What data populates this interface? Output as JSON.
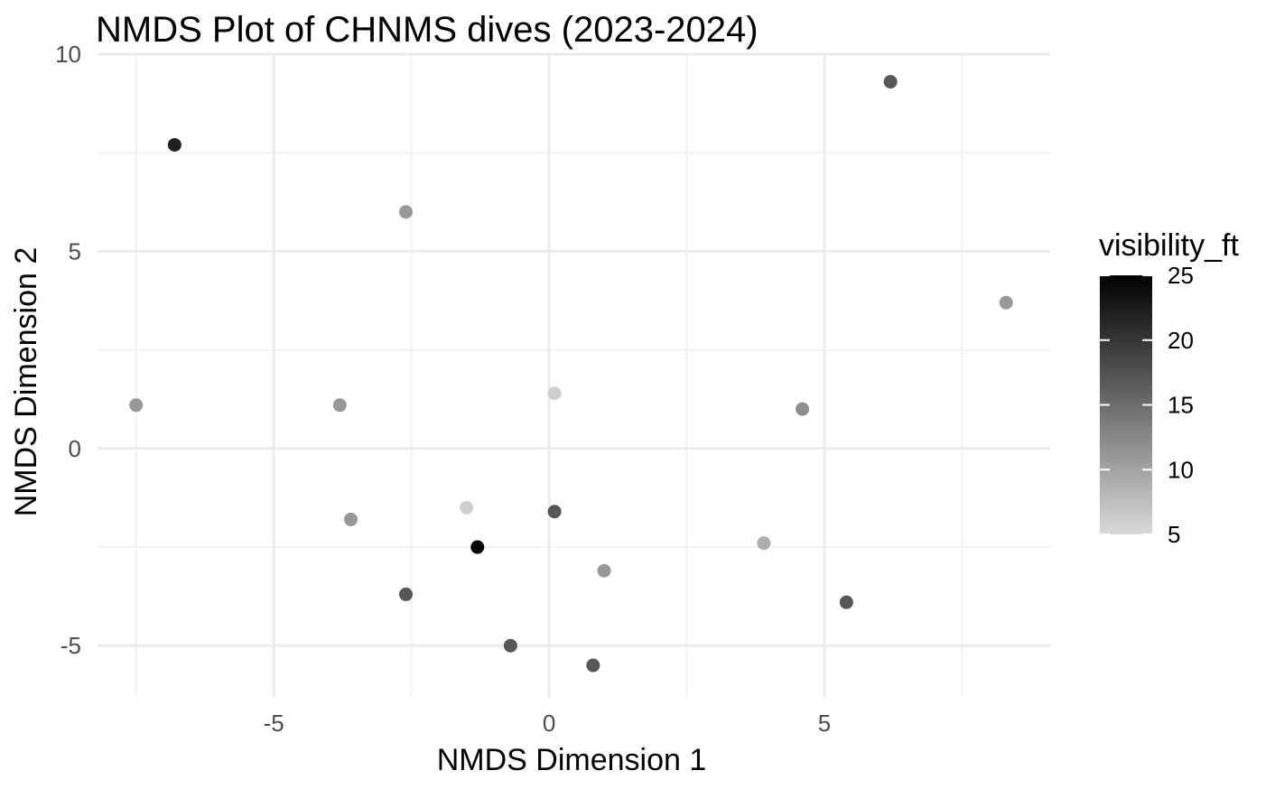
{
  "chart_data": {
    "type": "scatter",
    "title": "NMDS Plot of CHNMS dives (2023-2024)",
    "xlabel": "NMDS Dimension 1",
    "ylabel": "NMDS Dimension 2",
    "xlim": [
      -8.2,
      9.1
    ],
    "ylim": [
      -6.3,
      10.0
    ],
    "x_ticks": [
      -5,
      0,
      5
    ],
    "x_tick_labels": [
      "-5",
      "0",
      "5"
    ],
    "y_ticks": [
      -5,
      0,
      5,
      10
    ],
    "y_tick_labels": [
      "-5",
      "0",
      "5",
      "10"
    ],
    "x_minor_ticks": [
      -7.5,
      -2.5,
      2.5,
      7.5
    ],
    "y_minor_ticks": [
      -2.5,
      2.5,
      7.5
    ],
    "grid": true,
    "legend": {
      "title": "visibility_ft",
      "placement": "right",
      "type": "continuous-colorbar",
      "range": [
        5,
        25
      ],
      "ticks": [
        5,
        10,
        15,
        20,
        25
      ],
      "tick_labels": [
        "5",
        "10",
        "15",
        "20",
        "25"
      ],
      "low_color": "#d9d9d9",
      "high_color": "#000000"
    },
    "series": [
      {
        "points": [
          {
            "x": -7.5,
            "y": 1.1,
            "visibility_ft": 11
          },
          {
            "x": -6.8,
            "y": 7.7,
            "visibility_ft": 22
          },
          {
            "x": -3.8,
            "y": 1.1,
            "visibility_ft": 11
          },
          {
            "x": -3.6,
            "y": -1.8,
            "visibility_ft": 11
          },
          {
            "x": -2.6,
            "y": 6.0,
            "visibility_ft": 11
          },
          {
            "x": -2.6,
            "y": -3.7,
            "visibility_ft": 17
          },
          {
            "x": -1.5,
            "y": -1.5,
            "visibility_ft": 6
          },
          {
            "x": -1.3,
            "y": -2.5,
            "visibility_ft": 25
          },
          {
            "x": -0.7,
            "y": -5.0,
            "visibility_ft": 17
          },
          {
            "x": 0.1,
            "y": 1.4,
            "visibility_ft": 6
          },
          {
            "x": 0.1,
            "y": -1.6,
            "visibility_ft": 17
          },
          {
            "x": 0.8,
            "y": -5.5,
            "visibility_ft": 17
          },
          {
            "x": 1.0,
            "y": -3.1,
            "visibility_ft": 11
          },
          {
            "x": 3.9,
            "y": -2.4,
            "visibility_ft": 9
          },
          {
            "x": 4.6,
            "y": 1.0,
            "visibility_ft": 12
          },
          {
            "x": 5.4,
            "y": -3.9,
            "visibility_ft": 17
          },
          {
            "x": 6.2,
            "y": 9.3,
            "visibility_ft": 17
          },
          {
            "x": 8.3,
            "y": 3.7,
            "visibility_ft": 11
          }
        ]
      }
    ]
  }
}
